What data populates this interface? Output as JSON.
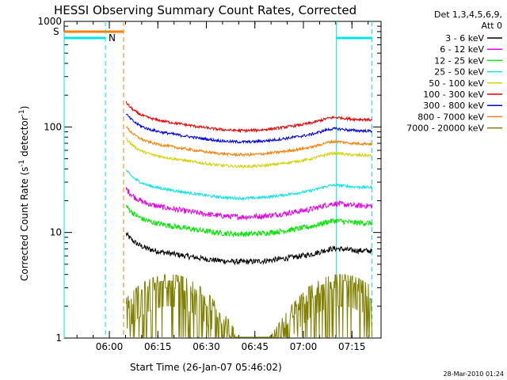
{
  "chart_data": {
    "type": "line",
    "title": "HESSI Observing Summary Count Rates, Corrected",
    "xlabel": "Start Time (26-Jan-07 05:46:02)",
    "ylabel_main": "Corrected Count Rate (s",
    "ylabel_sup1": "-1",
    "ylabel_mid": " detector",
    "ylabel_sup2": "-1",
    "ylabel_end": ")",
    "yscale": "log",
    "xlim": [
      "05:46:02",
      "07:24:00"
    ],
    "ylim": [
      1,
      1000
    ],
    "x_ticks": [
      "06:00",
      "06:15",
      "06:30",
      "06:45",
      "07:00",
      "07:15"
    ],
    "y_ticks": [
      "1",
      "10",
      "100",
      "1000"
    ],
    "legend": {
      "header": [
        "Det 1,3,4,5,6,9,",
        "Att 0"
      ],
      "placement": "right"
    },
    "flags": [
      {
        "label": "S",
        "color": "#ff7f00"
      },
      {
        "label": "N",
        "color": "#00e5e5"
      }
    ],
    "timestamp": "28-Mar-2010 01:24",
    "series": [
      {
        "name": "3 - 6 keV",
        "color": "#000000",
        "level": 6
      },
      {
        "name": "6 - 12 keV",
        "color": "#e600e6",
        "level": 16
      },
      {
        "name": "12 - 25 keV",
        "color": "#00e600",
        "level": 11
      },
      {
        "name": "25 - 50 keV",
        "color": "#00e5e5",
        "level": 24
      },
      {
        "name": "50 - 100 keV",
        "color": "#d2d200",
        "level": 48
      },
      {
        "name": "100 - 300 keV",
        "color": "#e60000",
        "level": 105
      },
      {
        "name": "300 - 800 keV",
        "color": "#0000e6",
        "level": 82
      },
      {
        "name": "800 - 7000 keV",
        "color": "#ff7f00",
        "level": 62
      },
      {
        "name": "7000 - 20000 keV",
        "color": "#808000",
        "level": 2.5
      }
    ]
  }
}
